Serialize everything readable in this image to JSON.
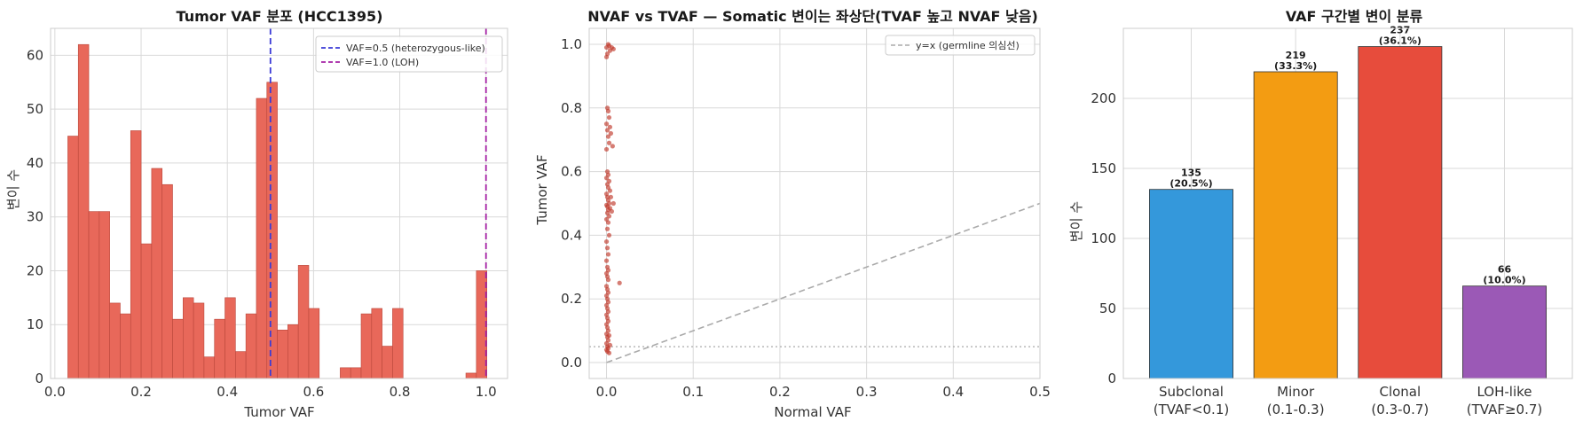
{
  "chart_data": [
    {
      "type": "bar",
      "title": "Tumor VAF 분포 (HCC1395)",
      "xlabel": "Tumor VAF",
      "ylabel": "변이 수",
      "xlim": [
        -0.01,
        1.05
      ],
      "ylim": [
        0,
        65
      ],
      "xticks": [
        0.0,
        0.2,
        0.4,
        0.6,
        0.8,
        1.0
      ],
      "xtick_labels": [
        "0.0",
        "0.2",
        "0.4",
        "0.6",
        "0.8",
        "1.0"
      ],
      "yticks": [
        0,
        10,
        20,
        30,
        40,
        50,
        60
      ],
      "bin_start": 0.03,
      "bin_width": 0.0243,
      "counts": [
        45,
        62,
        31,
        31,
        14,
        12,
        46,
        25,
        39,
        36,
        11,
        15,
        14,
        4,
        11,
        15,
        5,
        12,
        52,
        55,
        9,
        10,
        21,
        13,
        0,
        0,
        2,
        2,
        12,
        13,
        6,
        13,
        0,
        0,
        0,
        0,
        0,
        0,
        1,
        20
      ],
      "color": "#e8685a",
      "vlines": [
        {
          "x": 0.5,
          "label": "VAF=0.5 (heterozygous-like)",
          "color": "#3b3bd6"
        },
        {
          "x": 1.0,
          "label": "VAF=1.0 (LOH)",
          "color": "#a523a5"
        }
      ],
      "legend": "top-right",
      "grid": true
    },
    {
      "type": "scatter",
      "title": "NVAF vs TVAF — Somatic 변이는 좌상단(TVAF 높고 NVAF 낮음)",
      "xlabel": "Normal VAF",
      "ylabel": "Tumor VAF",
      "xlim": [
        -0.02,
        0.5
      ],
      "ylim": [
        -0.05,
        1.05
      ],
      "xticks": [
        0.0,
        0.1,
        0.2,
        0.3,
        0.4,
        0.5
      ],
      "xtick_labels": [
        "0.0",
        "0.1",
        "0.2",
        "0.3",
        "0.4",
        "0.5"
      ],
      "yticks": [
        0.0,
        0.2,
        0.4,
        0.6,
        0.8,
        1.0
      ],
      "ytick_labels": [
        "0.0",
        "0.2",
        "0.4",
        "0.6",
        "0.8",
        "1.0"
      ],
      "point_color": "#c0392b",
      "points": [
        [
          0.0,
          0.99
        ],
        [
          0.002,
          1.0
        ],
        [
          0.004,
          0.98
        ],
        [
          0.001,
          0.97
        ],
        [
          0.003,
          0.995
        ],
        [
          0.006,
          0.99
        ],
        [
          0.008,
          0.985
        ],
        [
          0.0,
          0.96
        ],
        [
          0.001,
          0.8
        ],
        [
          0.002,
          0.79
        ],
        [
          0.003,
          0.77
        ],
        [
          0.0,
          0.75
        ],
        [
          0.004,
          0.74
        ],
        [
          0.001,
          0.73
        ],
        [
          0.002,
          0.71
        ],
        [
          0.005,
          0.72
        ],
        [
          0.003,
          0.69
        ],
        [
          0.007,
          0.68
        ],
        [
          0.0,
          0.67
        ],
        [
          0.001,
          0.6
        ],
        [
          0.002,
          0.59
        ],
        [
          0.0,
          0.58
        ],
        [
          0.003,
          0.57
        ],
        [
          0.001,
          0.56
        ],
        [
          0.002,
          0.55
        ],
        [
          0.004,
          0.54
        ],
        [
          0.0,
          0.53
        ],
        [
          0.001,
          0.52
        ],
        [
          0.002,
          0.51
        ],
        [
          0.003,
          0.5
        ],
        [
          0.0,
          0.495
        ],
        [
          0.001,
          0.49
        ],
        [
          0.004,
          0.485
        ],
        [
          0.002,
          0.48
        ],
        [
          0.006,
          0.475
        ],
        [
          0.001,
          0.47
        ],
        [
          0.008,
          0.5
        ],
        [
          0.005,
          0.52
        ],
        [
          0.003,
          0.46
        ],
        [
          0.0,
          0.45
        ],
        [
          0.002,
          0.44
        ],
        [
          0.001,
          0.42
        ],
        [
          0.003,
          0.4
        ],
        [
          0.0,
          0.38
        ],
        [
          0.001,
          0.36
        ],
        [
          0.002,
          0.34
        ],
        [
          0.0,
          0.32
        ],
        [
          0.001,
          0.3
        ],
        [
          0.002,
          0.29
        ],
        [
          0.0,
          0.28
        ],
        [
          0.001,
          0.27
        ],
        [
          0.002,
          0.26
        ],
        [
          0.015,
          0.25
        ],
        [
          0.0,
          0.24
        ],
        [
          0.001,
          0.23
        ],
        [
          0.002,
          0.22
        ],
        [
          0.0,
          0.21
        ],
        [
          0.001,
          0.2
        ],
        [
          0.002,
          0.19
        ],
        [
          0.0,
          0.18
        ],
        [
          0.001,
          0.17
        ],
        [
          0.002,
          0.16
        ],
        [
          0.0,
          0.15
        ],
        [
          0.001,
          0.14
        ],
        [
          0.002,
          0.13
        ],
        [
          0.0,
          0.12
        ],
        [
          0.001,
          0.11
        ],
        [
          0.002,
          0.1
        ],
        [
          0.0,
          0.09
        ],
        [
          0.001,
          0.08
        ],
        [
          0.002,
          0.07
        ],
        [
          0.0,
          0.06
        ],
        [
          0.001,
          0.05
        ],
        [
          0.002,
          0.045
        ],
        [
          0.0,
          0.04
        ],
        [
          0.001,
          0.035
        ],
        [
          0.003,
          0.03
        ],
        [
          0.004,
          0.055
        ],
        [
          0.003,
          0.085
        ]
      ],
      "reference_line": {
        "label": "y=x (germline 의심선)",
        "color": "#aaaaaa"
      },
      "hline": {
        "y": 0.05,
        "color": "#aaaaaa"
      },
      "legend": "top-right",
      "grid": true
    },
    {
      "type": "bar",
      "title": "VAF 구간별 변이 분류",
      "ylabel": "변이 수",
      "ylim": [
        0,
        250
      ],
      "yticks": [
        0,
        50,
        100,
        150,
        200
      ],
      "categories": [
        [
          "Subclonal",
          "(TVAF<0.1)"
        ],
        [
          "Minor",
          "(0.1-0.3)"
        ],
        [
          "Clonal",
          "(0.3-0.7)"
        ],
        [
          "LOH-like",
          "(TVAF≥0.7)"
        ]
      ],
      "values": [
        135,
        219,
        237,
        66
      ],
      "data_labels": [
        [
          "135",
          "(20.5%)"
        ],
        [
          "219",
          "(33.3%)"
        ],
        [
          "237",
          "(36.1%)"
        ],
        [
          "66",
          "(10.0%)"
        ]
      ],
      "colors": [
        "#3498db",
        "#f39c12",
        "#e74c3c",
        "#9b59b6"
      ],
      "grid": true
    }
  ]
}
